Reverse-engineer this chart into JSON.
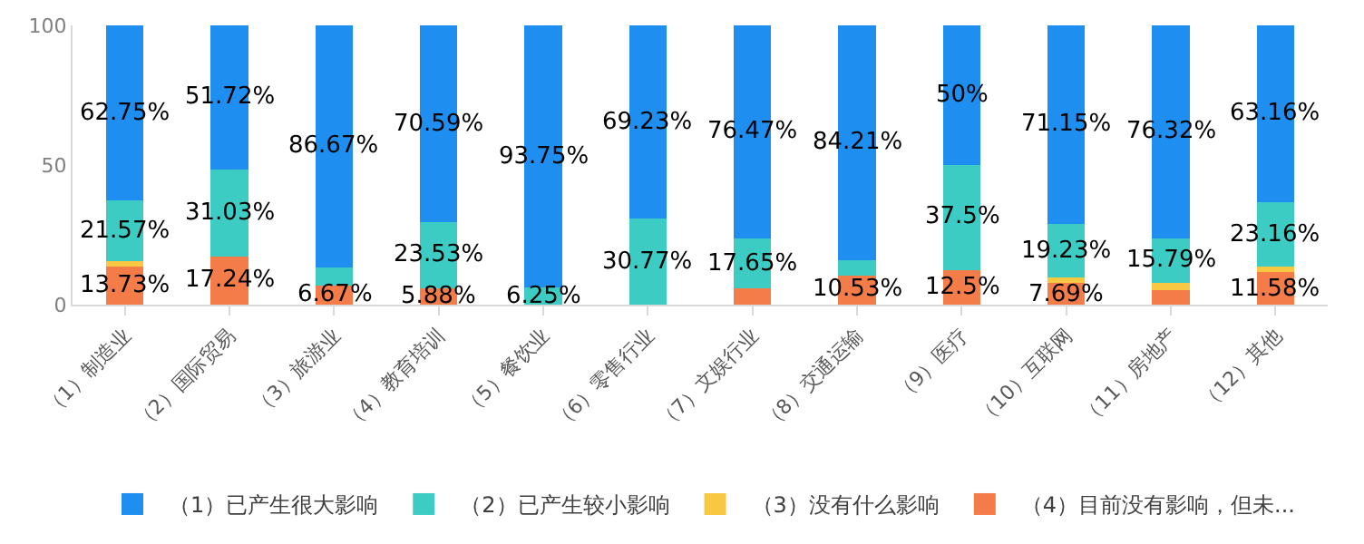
{
  "chart_data": {
    "type": "bar",
    "stacked": true,
    "categories": [
      "（1）制造业",
      "（2）国际贸易",
      "（3）旅游业",
      "（4）教育培训",
      "（5）餐饮业",
      "（6）零售行业",
      "（7）文娱行业",
      "（8）交通运输",
      "（9）医疗",
      "（10）互联网",
      "（11）房地产",
      "（12）其他"
    ],
    "series": [
      {
        "name": "（4）目前没有影响，但未...",
        "color": "#f47c48",
        "values": [
          13.73,
          17.24,
          6.67,
          5.88,
          0,
          0,
          5.9,
          10.53,
          12.5,
          7.69,
          5.3,
          11.58
        ],
        "value_labels": [
          "13.73%",
          "17.24%",
          "6.67%",
          "5.88%",
          null,
          null,
          null,
          "10.53%",
          "12.5%",
          "7.69%",
          null,
          "11.58%"
        ]
      },
      {
        "name": "（3）没有什么影响",
        "color": "#f9c842",
        "values": [
          2,
          0,
          0,
          0,
          0,
          0,
          0,
          0,
          0,
          1.9,
          2.6,
          2.1
        ],
        "value_labels": [
          null,
          null,
          null,
          null,
          null,
          null,
          null,
          null,
          null,
          null,
          null,
          null
        ]
      },
      {
        "name": "（2）已产生较小影响",
        "color": "#3cccc4",
        "values": [
          21.57,
          31.03,
          6.7,
          23.53,
          6.25,
          30.77,
          17.65,
          5.3,
          37.5,
          19.23,
          15.79,
          23.16
        ],
        "value_labels": [
          "21.57%",
          "31.03%",
          null,
          "23.53%",
          "6.25%",
          "30.77%",
          "17.65%",
          null,
          "37.5%",
          "19.23%",
          "15.79%",
          "23.16%"
        ]
      },
      {
        "name": "（1）已产生很大影响",
        "color": "#1e8ff0",
        "values": [
          62.75,
          51.72,
          86.67,
          70.59,
          93.75,
          69.23,
          76.47,
          84.21,
          50,
          71.15,
          76.32,
          63.16
        ],
        "value_labels": [
          "62.75%",
          "51.72%",
          "86.67%",
          "70.59%",
          "93.75%",
          "69.23%",
          "76.47%",
          "84.21%",
          "50%",
          "71.15%",
          "76.32%",
          "63.16%"
        ]
      }
    ],
    "ylim": [
      0,
      100
    ],
    "yticks": [
      0,
      50,
      100
    ],
    "grid": false,
    "legend": "bottom"
  }
}
